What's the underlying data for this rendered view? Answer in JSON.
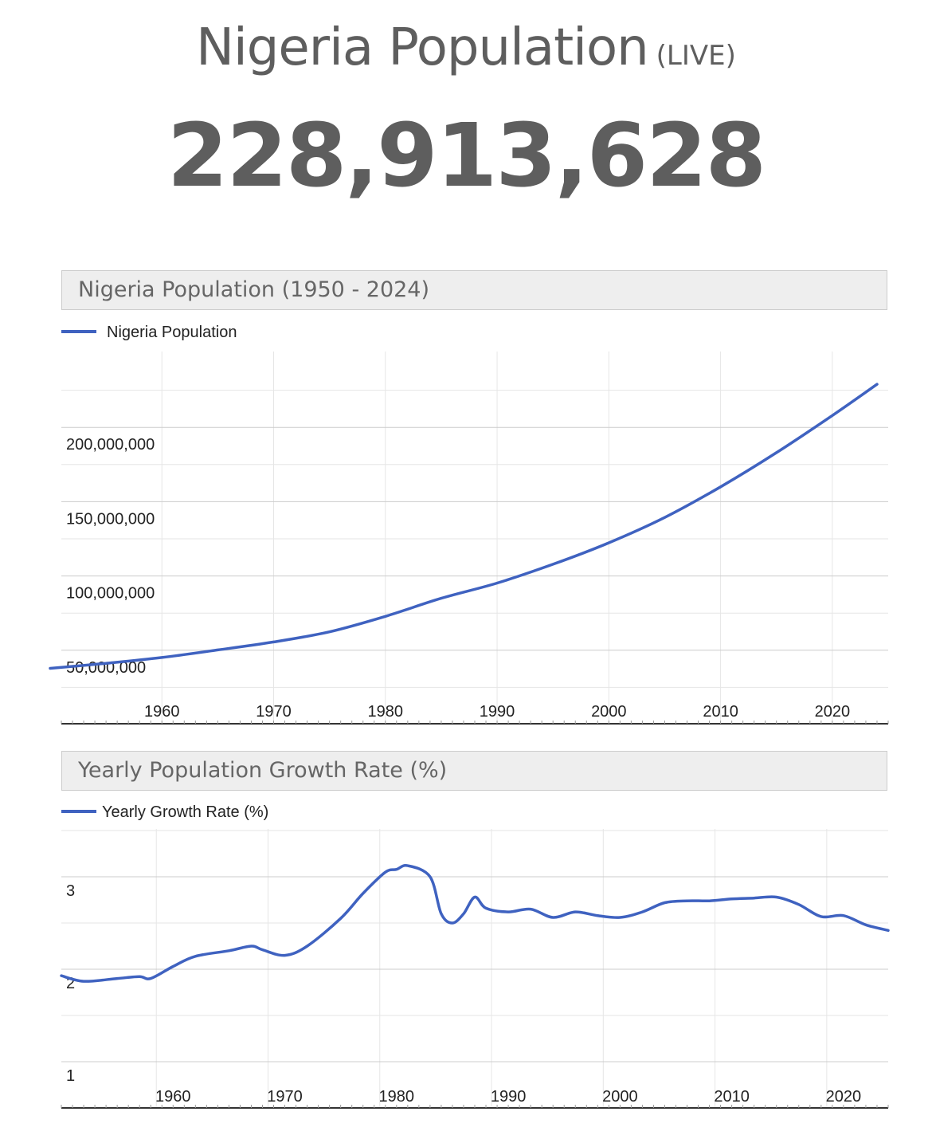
{
  "header": {
    "title": "Nigeria Population",
    "live_label": "(LIVE)",
    "live_count": "228,913,628"
  },
  "colors": {
    "line": "#3f62c0",
    "grid": "#e6e6e6",
    "grid_major": "#cccccc",
    "header_bg": "#eeeeee",
    "text": "#5e5e5e"
  },
  "chart_data": [
    {
      "type": "line",
      "title": "Nigeria Population (1950 - 2024)",
      "legend": "top-left",
      "series": [
        {
          "name": "Nigeria Population",
          "x": [
            1950,
            1955,
            1960,
            1965,
            1970,
            1975,
            1980,
            1985,
            1990,
            1995,
            2000,
            2005,
            2010,
            2015,
            2020,
            2024
          ],
          "values": [
            37800000,
            41200000,
            45100000,
            50200000,
            55600000,
            62400000,
            72800000,
            85000000,
            95200000,
            107900000,
            122300000,
            139400000,
            160000000,
            183000000,
            208000000,
            229000000
          ]
        }
      ],
      "x_ticks": [
        "1960",
        "1970",
        "1980",
        "1990",
        "2000",
        "2010",
        "2020"
      ],
      "y_ticks": [
        "50,000,000",
        "100,000,000",
        "150,000,000",
        "200,000,000"
      ],
      "xlim": [
        1950,
        2024
      ],
      "ylim": [
        0,
        250000000
      ],
      "grid": true
    },
    {
      "type": "line",
      "title": "Yearly Population Growth Rate (%)",
      "legend": "top-left",
      "series": [
        {
          "name": "Yearly Growth Rate (%)",
          "x": [
            1950,
            1952,
            1955,
            1957,
            1958,
            1960,
            1962,
            1965,
            1967,
            1968,
            1970,
            1972,
            1975,
            1977,
            1979,
            1980,
            1981,
            1983,
            1984,
            1985,
            1986,
            1987,
            1988,
            1990,
            1992,
            1994,
            1996,
            1998,
            2000,
            2002,
            2004,
            2006,
            2008,
            2010,
            2012,
            2014,
            2016,
            2018,
            2020,
            2022,
            2024
          ],
          "values": [
            1.93,
            1.87,
            1.9,
            1.92,
            1.9,
            2.03,
            2.14,
            2.2,
            2.25,
            2.21,
            2.15,
            2.25,
            2.55,
            2.82,
            3.05,
            3.08,
            3.12,
            3.0,
            2.6,
            2.5,
            2.6,
            2.78,
            2.66,
            2.62,
            2.65,
            2.56,
            2.62,
            2.58,
            2.56,
            2.62,
            2.72,
            2.74,
            2.74,
            2.76,
            2.77,
            2.78,
            2.7,
            2.57,
            2.58,
            2.48,
            2.42
          ]
        }
      ],
      "x_ticks": [
        "1960",
        "1970",
        "1980",
        "1990",
        "2000",
        "2010",
        "2020"
      ],
      "y_ticks": [
        "1",
        "2",
        "3"
      ],
      "xlim": [
        1950,
        2024
      ],
      "ylim": [
        0.5,
        3.5
      ],
      "grid": true
    }
  ]
}
